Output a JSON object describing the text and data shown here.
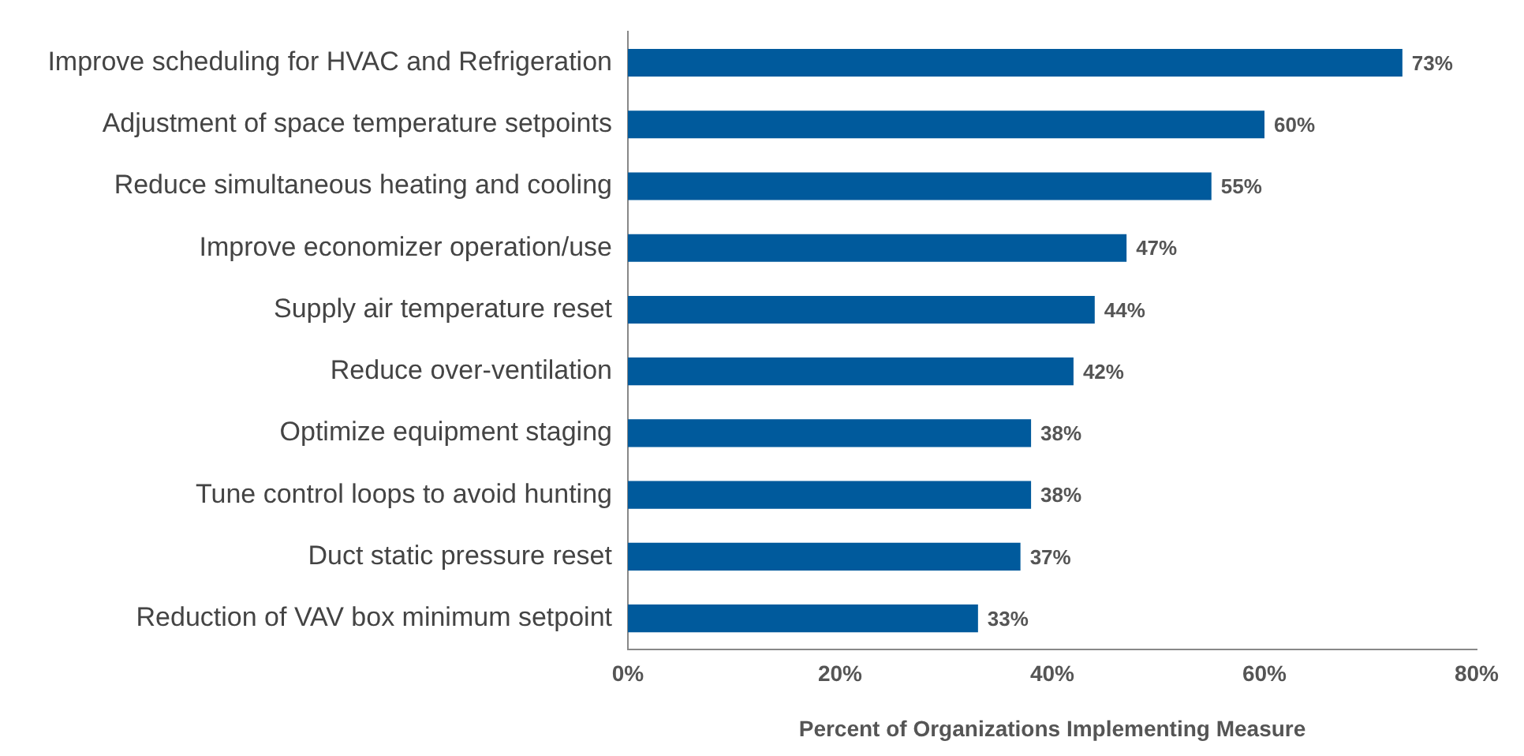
{
  "chart_data": {
    "type": "bar",
    "orientation": "horizontal",
    "xlabel": "Percent of Organizations Implementing Measure",
    "categories": [
      "Improve scheduling for HVAC and Refrigeration",
      "Adjustment of space temperature setpoints",
      "Reduce simultaneous heating and cooling",
      "Improve economizer operation/use",
      "Supply air temperature reset",
      "Reduce over-ventilation",
      "Optimize equipment staging",
      "Tune control loops to avoid hunting",
      "Duct static pressure reset",
      "Reduction of VAV box minimum setpoint"
    ],
    "values": [
      73,
      60,
      55,
      47,
      44,
      42,
      38,
      38,
      37,
      33
    ],
    "value_labels": [
      "73%",
      "60%",
      "55%",
      "47%",
      "44%",
      "42%",
      "38%",
      "38%",
      "37%",
      "33%"
    ],
    "color": "#005a9c",
    "xlim": [
      0,
      80
    ],
    "xticks": [
      {
        "value": 0,
        "label": "0%"
      },
      {
        "value": 20,
        "label": "20%"
      },
      {
        "value": 40,
        "label": "40%"
      },
      {
        "value": 60,
        "label": "60%"
      },
      {
        "value": 80,
        "label": "80%"
      }
    ],
    "grid": false,
    "legend": false
  }
}
